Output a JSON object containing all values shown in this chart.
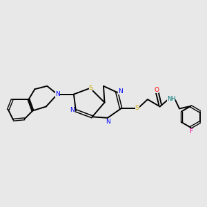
{
  "background_color": "#e8e8e8",
  "bond_color": "#000000",
  "N_color": "#0000ff",
  "S_color": "#ccaa00",
  "O_color": "#ff0000",
  "F_color": "#ee00aa",
  "NH_color": "#007777",
  "figsize": [
    3.0,
    3.0
  ],
  "dpi": 100,
  "xlim": [
    0,
    10
  ],
  "ylim": [
    2,
    8
  ]
}
